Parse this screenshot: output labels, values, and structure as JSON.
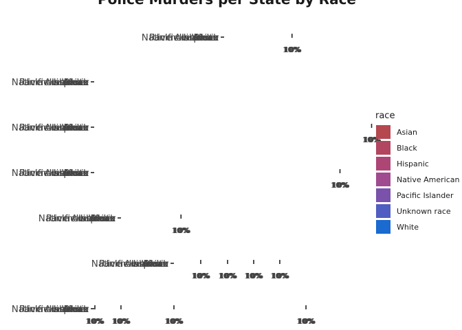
{
  "chart_data": {
    "type": "bar",
    "title": "Police Murders per State by Race",
    "xlabel": "",
    "ylabel": "",
    "category_label_text": "Native American",
    "categories": [
      "Asian",
      "Black",
      "Hispanic",
      "Native American",
      "Pacific Islander",
      "Unknown race",
      "White"
    ],
    "tick_label_text": "10%",
    "panels": [
      {
        "ticks": [
          0.85
        ]
      },
      {
        "ticks": []
      },
      {
        "ticks": [
          3.5
        ]
      },
      {
        "ticks": [
          3.1
        ]
      },
      {
        "ticks": [
          0.75
        ]
      },
      {
        "ticks": [
          0.33,
          0.67,
          1.0,
          1.33
        ]
      },
      {
        "ticks": [
          0.0,
          0.33,
          1.0,
          2.67
        ]
      }
    ],
    "legend": {
      "title": "race",
      "placement": "right",
      "items": [
        {
          "label": "Asian",
          "color": "#b5474f"
        },
        {
          "label": "Black",
          "color": "#b2455f"
        },
        {
          "label": "Hispanic",
          "color": "#ad4674"
        },
        {
          "label": "Native American",
          "color": "#a04a8f"
        },
        {
          "label": "Pacific Islander",
          "color": "#7a52ab"
        },
        {
          "label": "Unknown race",
          "color": "#505ec2"
        },
        {
          "label": "White",
          "color": "#1a6ad0"
        }
      ]
    }
  }
}
